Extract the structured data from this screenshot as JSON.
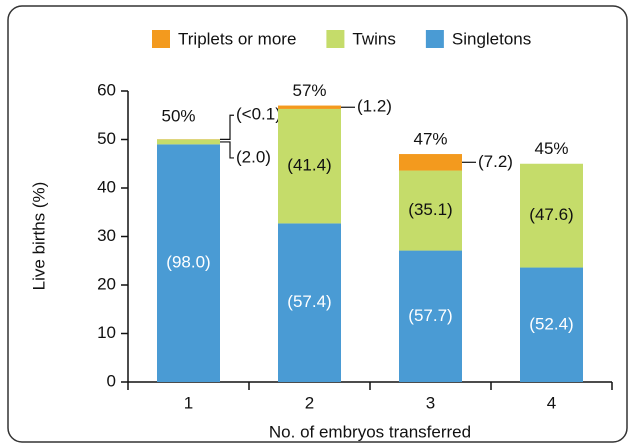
{
  "chart_data": {
    "type": "stacked_bar",
    "ylabel": "Live births (%)",
    "xlabel": "No. of embryos transferred",
    "categories": [
      "1",
      "2",
      "3",
      "4"
    ],
    "series": [
      {
        "name": "Singletons",
        "color": "#4a9bd4",
        "values": [
          49,
          32.7,
          27.1,
          23.6
        ],
        "share_labels": [
          "(98.0)",
          "(57.4)",
          "(57.7)",
          "(52.4)"
        ]
      },
      {
        "name": "Twins",
        "color": "#c5dc6a",
        "values": [
          1,
          23.6,
          16.5,
          21.4
        ],
        "share_labels": [
          "(2.0)",
          "(41.4)",
          "(35.1)",
          "(47.6)"
        ]
      },
      {
        "name": "Triplets or more",
        "color": "#f39a1e",
        "values": [
          0.05,
          0.7,
          3.4,
          0
        ],
        "share_labels": [
          "(<0.1)",
          "(1.2)",
          "(7.2)",
          null
        ]
      }
    ],
    "total_labels": [
      "50%",
      "57%",
      "47%",
      "45%"
    ],
    "ylim": [
      0,
      60
    ],
    "yticks": [
      0,
      10,
      20,
      30,
      40,
      50,
      60
    ],
    "legend": "top"
  }
}
